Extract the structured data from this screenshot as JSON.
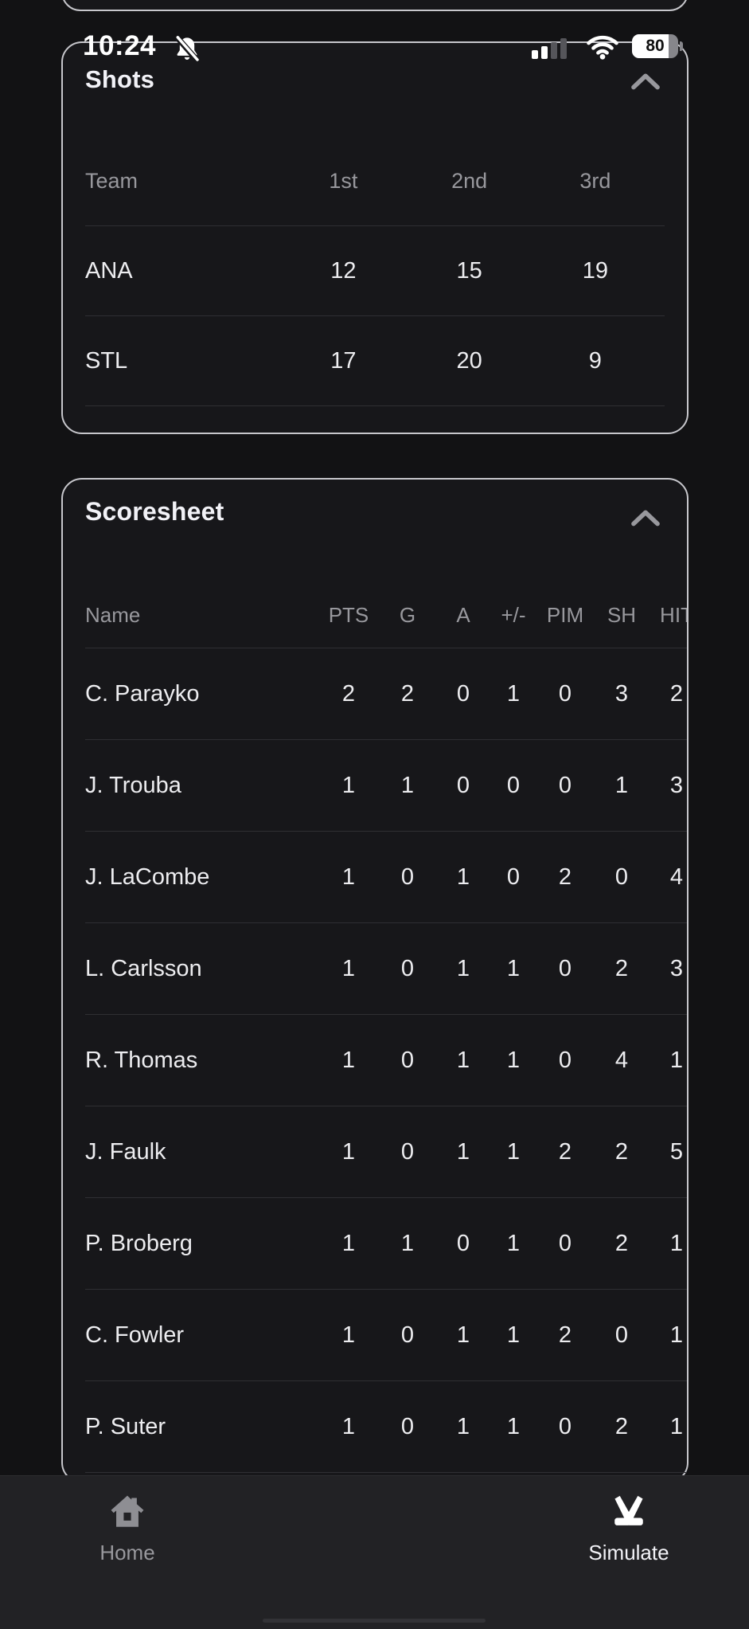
{
  "status_bar": {
    "time": "10:24",
    "battery_level": "80",
    "icons": [
      "notifications-off-icon",
      "cellular-signal-icon",
      "wifi-icon",
      "battery-icon"
    ]
  },
  "shots": {
    "title": "Shots",
    "columns": [
      "Team",
      "1st",
      "2nd",
      "3rd"
    ],
    "rows": [
      [
        "ANA",
        "12",
        "15",
        "19"
      ],
      [
        "STL",
        "17",
        "20",
        "9"
      ]
    ]
  },
  "scoresheet": {
    "title": "Scoresheet",
    "columns": [
      "Name",
      "PTS",
      "G",
      "A",
      "+/-",
      "PIM",
      "SH",
      "HIT"
    ],
    "rows": [
      [
        "C. Parayko",
        "2",
        "2",
        "0",
        "1",
        "0",
        "3",
        "2"
      ],
      [
        "J. Trouba",
        "1",
        "1",
        "0",
        "0",
        "0",
        "1",
        "3"
      ],
      [
        "J. LaCombe",
        "1",
        "0",
        "1",
        "0",
        "2",
        "0",
        "4"
      ],
      [
        "L. Carlsson",
        "1",
        "0",
        "1",
        "1",
        "0",
        "2",
        "3"
      ],
      [
        "R. Thomas",
        "1",
        "0",
        "1",
        "1",
        "0",
        "4",
        "1"
      ],
      [
        "J. Faulk",
        "1",
        "0",
        "1",
        "1",
        "2",
        "2",
        "5"
      ],
      [
        "P. Broberg",
        "1",
        "1",
        "0",
        "1",
        "0",
        "2",
        "1"
      ],
      [
        "C. Fowler",
        "1",
        "0",
        "1",
        "1",
        "2",
        "0",
        "1"
      ],
      [
        "P. Suter",
        "1",
        "0",
        "1",
        "1",
        "0",
        "2",
        "1"
      ]
    ]
  },
  "nav": {
    "items": [
      {
        "label": "Home",
        "icon": "home-icon",
        "active": false
      },
      {
        "label": "Simulate",
        "icon": "hockey-sticks-icon",
        "active": true
      }
    ]
  },
  "colors": {
    "page_bg": "#121214",
    "card_bg": "#17171a",
    "card_border": "#c7c7cc",
    "divider": "#2f2f33",
    "muted_text": "#98989d",
    "primary_text": "#f2f2f7",
    "nav_bg": "#222225"
  }
}
